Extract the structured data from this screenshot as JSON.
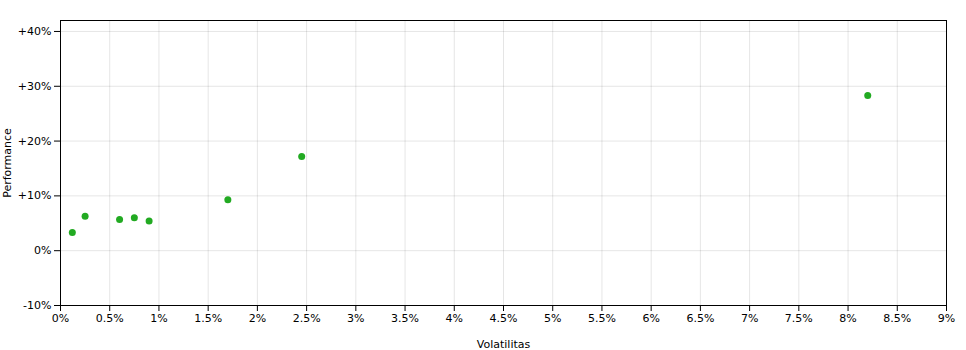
{
  "chart_data": {
    "type": "scatter",
    "xlabel": "Volatilitas",
    "ylabel": "Performance",
    "x": [
      0.0012,
      0.0025,
      0.006,
      0.0075,
      0.009,
      0.017,
      0.0245,
      0.082
    ],
    "values": [
      0.033,
      0.063,
      0.057,
      0.06,
      0.054,
      0.093,
      0.172,
      0.283
    ],
    "color": "#22aa22",
    "marker": "circle",
    "xlim": [
      0,
      0.09
    ],
    "ylim": [
      -0.1,
      0.42
    ],
    "xticks": [
      {
        "value": 0.0,
        "label": "0%"
      },
      {
        "value": 0.005,
        "label": "0.5%"
      },
      {
        "value": 0.01,
        "label": "1%"
      },
      {
        "value": 0.015,
        "label": "1.5%"
      },
      {
        "value": 0.02,
        "label": "2%"
      },
      {
        "value": 0.025,
        "label": "2.5%"
      },
      {
        "value": 0.03,
        "label": "3%"
      },
      {
        "value": 0.035,
        "label": "3.5%"
      },
      {
        "value": 0.04,
        "label": "4%"
      },
      {
        "value": 0.045,
        "label": "4.5%"
      },
      {
        "value": 0.05,
        "label": "5%"
      },
      {
        "value": 0.055,
        "label": "5.5%"
      },
      {
        "value": 0.06,
        "label": "6%"
      },
      {
        "value": 0.065,
        "label": "6.5%"
      },
      {
        "value": 0.07,
        "label": "7%"
      },
      {
        "value": 0.075,
        "label": "7.5%"
      },
      {
        "value": 0.08,
        "label": "8%"
      },
      {
        "value": 0.085,
        "label": "8.5%"
      },
      {
        "value": 0.09,
        "label": "9%"
      }
    ],
    "yticks": [
      {
        "value": -0.1,
        "label": "-10%"
      },
      {
        "value": 0.0,
        "label": "0%"
      },
      {
        "value": 0.1,
        "label": "+10%"
      },
      {
        "value": 0.2,
        "label": "+20%"
      },
      {
        "value": 0.3,
        "label": "+30%"
      },
      {
        "value": 0.4,
        "label": "+40%"
      }
    ],
    "grid": true
  }
}
